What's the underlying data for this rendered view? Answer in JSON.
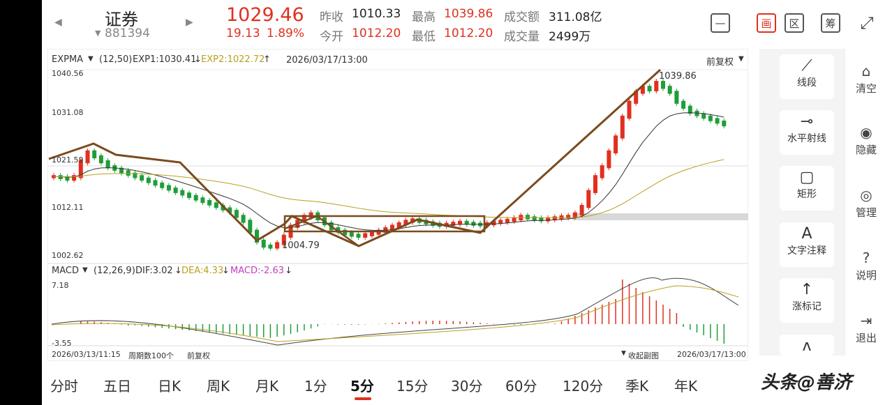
{
  "header": {
    "back_icon": "chevron-left-icon",
    "forward_icon": "chevron-right-icon",
    "name": "证券",
    "code": "881394",
    "price": "1029.46",
    "change": "19.13",
    "change_pct": "1.89%",
    "prev_close_label": "昨收",
    "prev_close": "1010.33",
    "open_label": "今开",
    "open": "1012.20",
    "high_label": "最高",
    "high": "1039.86",
    "low_label": "最低",
    "low": "1012.20",
    "amount_label": "成交额",
    "amount": "311.08亿",
    "volume_label": "成交量",
    "volume": "2499万",
    "toolbar": [
      {
        "name": "minimize-icon",
        "glyph": "—"
      },
      {
        "name": "draw-icon",
        "glyph": "画"
      },
      {
        "name": "range-icon",
        "glyph": "区"
      },
      {
        "name": "chip-icon",
        "glyph": "筹"
      },
      {
        "name": "landscape-icon",
        "glyph": "⤢"
      }
    ]
  },
  "main_chart": {
    "indicator": "EXPMA",
    "params": "(12,50)",
    "exp1": "EXP1:1030.41",
    "exp2": "EXP2:1022.72",
    "datetime": "2026/03/17/13:00",
    "adjust": "前复权",
    "y_ticks": [
      "1040.56",
      "1031.08",
      "1021.59",
      "1012.11",
      "1002.62"
    ],
    "high_mark": "1039.86",
    "low_mark": "1004.79"
  },
  "sub_chart": {
    "indicator": "MACD",
    "params": "(12,26,9)",
    "dif": "DIF:3.02",
    "dea": "DEA:4.33",
    "macd": "MACD:-2.63",
    "y_top": "7.18",
    "y_bottom": "-3.55"
  },
  "footer_bar": {
    "start_time": "2026/03/13/11:15",
    "period_count": "周期数100个",
    "adjust": "前复权",
    "collapse": "收起副图",
    "end_time": "2026/03/17/13:00"
  },
  "tools": [
    {
      "icon": "segment-icon",
      "glyph": "⟋",
      "label": "线段"
    },
    {
      "icon": "horizontal-ray-icon",
      "glyph": "⊸",
      "label": "水平射线"
    },
    {
      "icon": "rectangle-icon",
      "glyph": "▢",
      "label": "矩形"
    },
    {
      "icon": "text-icon",
      "glyph": "A",
      "label": "文字注释"
    },
    {
      "icon": "price-mark-icon",
      "glyph": "↑",
      "label": "涨标记"
    },
    {
      "icon": "wave-icon",
      "glyph": "ᴧ",
      "label": ""
    }
  ],
  "sidebar": [
    {
      "icon": "clear-icon",
      "glyph": "⌂",
      "label": "清空"
    },
    {
      "icon": "eye-icon",
      "glyph": "◉",
      "label": "隐藏"
    },
    {
      "icon": "manage-icon",
      "glyph": "◎",
      "label": "管理"
    },
    {
      "icon": "help-icon",
      "glyph": "?",
      "label": "说明"
    },
    {
      "icon": "exit-icon",
      "glyph": "⇥",
      "label": "退出"
    }
  ],
  "tabs": [
    "分时",
    "五日",
    "日K",
    "周K",
    "月K",
    "1分",
    "5分",
    "15分",
    "30分",
    "60分",
    "120分",
    "季K",
    "年K"
  ],
  "active_tab": "5分",
  "watermark": "头条@善济",
  "colors": {
    "up": "#e0301e",
    "down": "#1f9d3a",
    "trend_line": "#7a4a1e",
    "exp2": "#b8a020",
    "dea": "#b8a020",
    "macd_label": "#c040c0"
  }
}
